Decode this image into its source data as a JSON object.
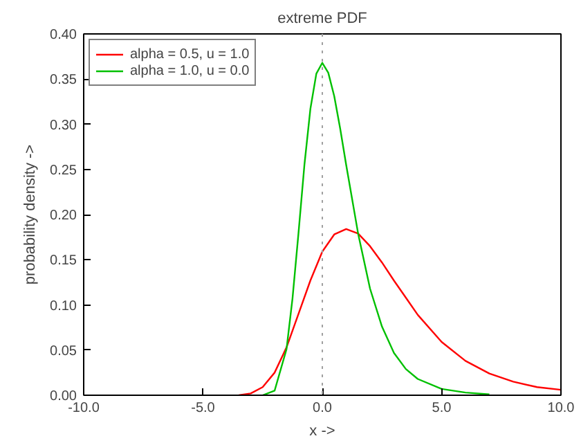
{
  "chart_data": {
    "type": "line",
    "title": "extreme PDF",
    "xlabel": "x ->",
    "ylabel": "probability density ->",
    "xlim": [
      -10,
      10
    ],
    "xticks": [
      {
        "value": -10,
        "label": "-10.0"
      },
      {
        "value": -5,
        "label": "-5.0"
      },
      {
        "value": 0,
        "label": "0.0"
      },
      {
        "value": 5,
        "label": "5.0"
      },
      {
        "value": 10,
        "label": "10.0"
      }
    ],
    "ylim": [
      0,
      0.4
    ],
    "yticks": [
      {
        "value": 0,
        "label": "0.00"
      },
      {
        "value": 0.05,
        "label": "0.05"
      },
      {
        "value": 0.1,
        "label": "0.10"
      },
      {
        "value": 0.15,
        "label": "0.15"
      },
      {
        "value": 0.2,
        "label": "0.20"
      },
      {
        "value": 0.25,
        "label": "0.25"
      },
      {
        "value": 0.3,
        "label": "0.30"
      },
      {
        "value": 0.35,
        "label": "0.35"
      },
      {
        "value": 0.4,
        "label": "0.40"
      }
    ],
    "grid": false,
    "legend": "top left",
    "marker": "none",
    "line_style": "solid",
    "ref_lines": [
      {
        "axis": "x",
        "value": 0,
        "color": "#a0a0a0",
        "line_style": "dotted"
      }
    ],
    "series": [
      {
        "name": "alpha = 0.5, u = 1.0",
        "color": "#ff0000",
        "x": [
          -3.5,
          -3,
          -2.5,
          -2,
          -1.5,
          -1,
          -0.5,
          0,
          0.5,
          1,
          1.5,
          2,
          2.5,
          3,
          3.5,
          4,
          5,
          6,
          7,
          8,
          9,
          10
        ],
        "values": [
          0.0,
          0.002,
          0.009,
          0.025,
          0.053,
          0.09,
          0.127,
          0.159,
          0.178,
          0.184,
          0.179,
          0.165,
          0.147,
          0.127,
          0.108,
          0.089,
          0.059,
          0.038,
          0.024,
          0.015,
          0.009,
          0.006
        ]
      },
      {
        "name": "alpha = 1.0, u = 0.0",
        "color": "#00c000",
        "x": [
          -2.5,
          -2,
          -1.5,
          -1.25,
          -1,
          -0.75,
          -0.5,
          -0.25,
          0,
          0.25,
          0.5,
          0.75,
          1,
          1.5,
          2,
          2.5,
          3,
          3.5,
          4,
          5,
          6,
          7
        ],
        "values": [
          0.0,
          0.005,
          0.051,
          0.107,
          0.179,
          0.255,
          0.317,
          0.356,
          0.368,
          0.357,
          0.331,
          0.295,
          0.255,
          0.179,
          0.118,
          0.076,
          0.047,
          0.029,
          0.018,
          0.007,
          0.003,
          0.001
        ]
      }
    ]
  }
}
